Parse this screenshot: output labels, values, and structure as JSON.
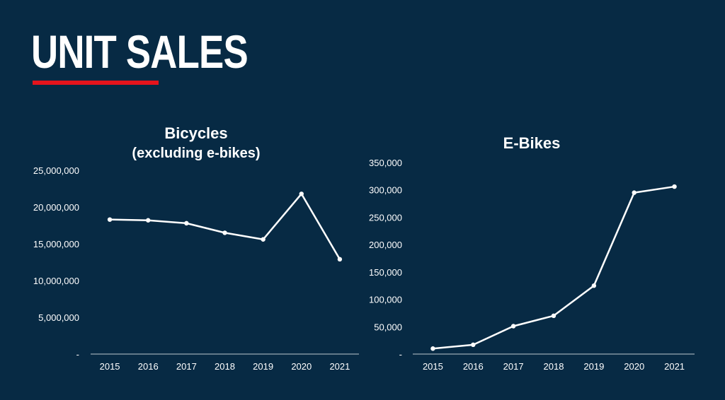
{
  "slide": {
    "title": "UNIT SALES",
    "accent_color": "#e5141c",
    "background_color": "#072a44"
  },
  "chart_data": [
    {
      "type": "line",
      "title": "Bicycles",
      "subtitle": "(excluding e-bikes)",
      "x": [
        "2015",
        "2016",
        "2017",
        "2018",
        "2019",
        "2020",
        "2021"
      ],
      "series": [
        {
          "values": [
            18300000,
            18200000,
            17800000,
            16500000,
            15600000,
            21800000,
            12900000
          ]
        }
      ],
      "ylim": [
        0,
        25000000
      ],
      "yticks": [
        0,
        5000000,
        10000000,
        15000000,
        20000000,
        25000000
      ],
      "ytick_labels": [
        "-",
        "5,000,000",
        "10,000,000",
        "15,000,000",
        "20,000,000",
        "25,000,000"
      ],
      "xlabel": "",
      "ylabel": "",
      "grid": false,
      "line_color": "#ffffff"
    },
    {
      "type": "line",
      "title": "E-Bikes",
      "x": [
        "2015",
        "2016",
        "2017",
        "2018",
        "2019",
        "2020",
        "2021"
      ],
      "series": [
        {
          "values": [
            10000,
            17000,
            51000,
            70000,
            125000,
            295000,
            306000
          ]
        }
      ],
      "ylim": [
        0,
        350000
      ],
      "yticks": [
        0,
        50000,
        100000,
        150000,
        200000,
        250000,
        300000,
        350000
      ],
      "ytick_labels": [
        "-",
        "50,000",
        "100,000",
        "150,000",
        "200,000",
        "250,000",
        "300,000",
        "350,000"
      ],
      "xlabel": "",
      "ylabel": "",
      "grid": false,
      "line_color": "#ffffff"
    }
  ]
}
